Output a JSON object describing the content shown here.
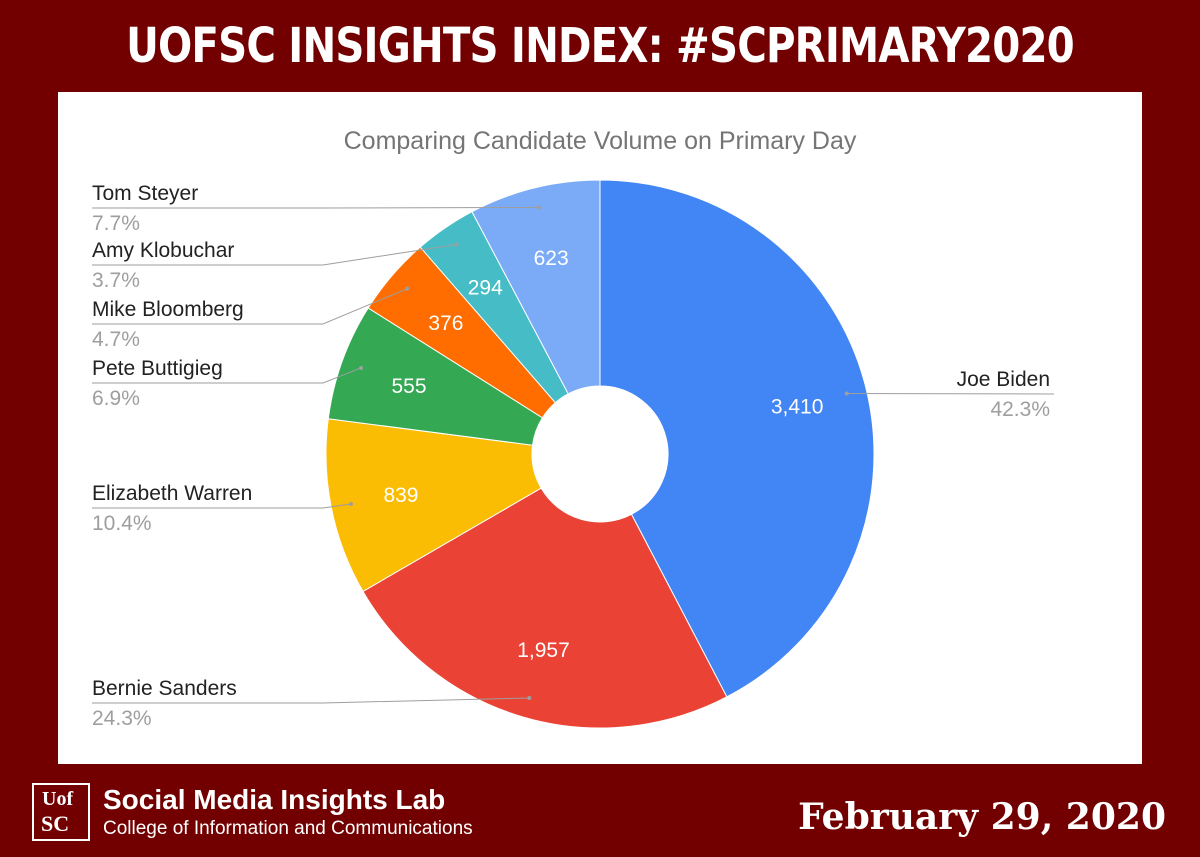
{
  "header": {
    "title": "UOFSC INSIGHTS INDEX: #SCPRIMARY2020"
  },
  "footer": {
    "logo_top": "Uof",
    "logo_bottom": "SC",
    "lab_name": "Social Media Insights Lab",
    "lab_subtitle": "College of Information and Communications",
    "date": "February 29, 2020"
  },
  "chart_data": {
    "type": "pie",
    "donut": true,
    "title": "Comparing Candidate Volume on Primary Day",
    "legend": "none",
    "slices": [
      {
        "name": "Joe Biden",
        "value": 3410,
        "value_label": "3,410",
        "percent_label": "42.3%",
        "color": "#4285f4"
      },
      {
        "name": "Bernie Sanders",
        "value": 1957,
        "value_label": "1,957",
        "percent_label": "24.3%",
        "color": "#ea4335"
      },
      {
        "name": "Elizabeth Warren",
        "value": 839,
        "value_label": "839",
        "percent_label": "10.4%",
        "color": "#fbbc04"
      },
      {
        "name": "Pete Buttigieg",
        "value": 555,
        "value_label": "555",
        "percent_label": "6.9%",
        "color": "#34a853"
      },
      {
        "name": "Mike Bloomberg",
        "value": 376,
        "value_label": "376",
        "percent_label": "4.7%",
        "color": "#ff6d01"
      },
      {
        "name": "Amy Klobuchar",
        "value": 294,
        "value_label": "294",
        "percent_label": "3.7%",
        "color": "#46bdc6"
      },
      {
        "name": "Tom Steyer",
        "value": 623,
        "value_label": "623",
        "percent_label": "7.7%",
        "color": "#7baaf7"
      }
    ]
  }
}
